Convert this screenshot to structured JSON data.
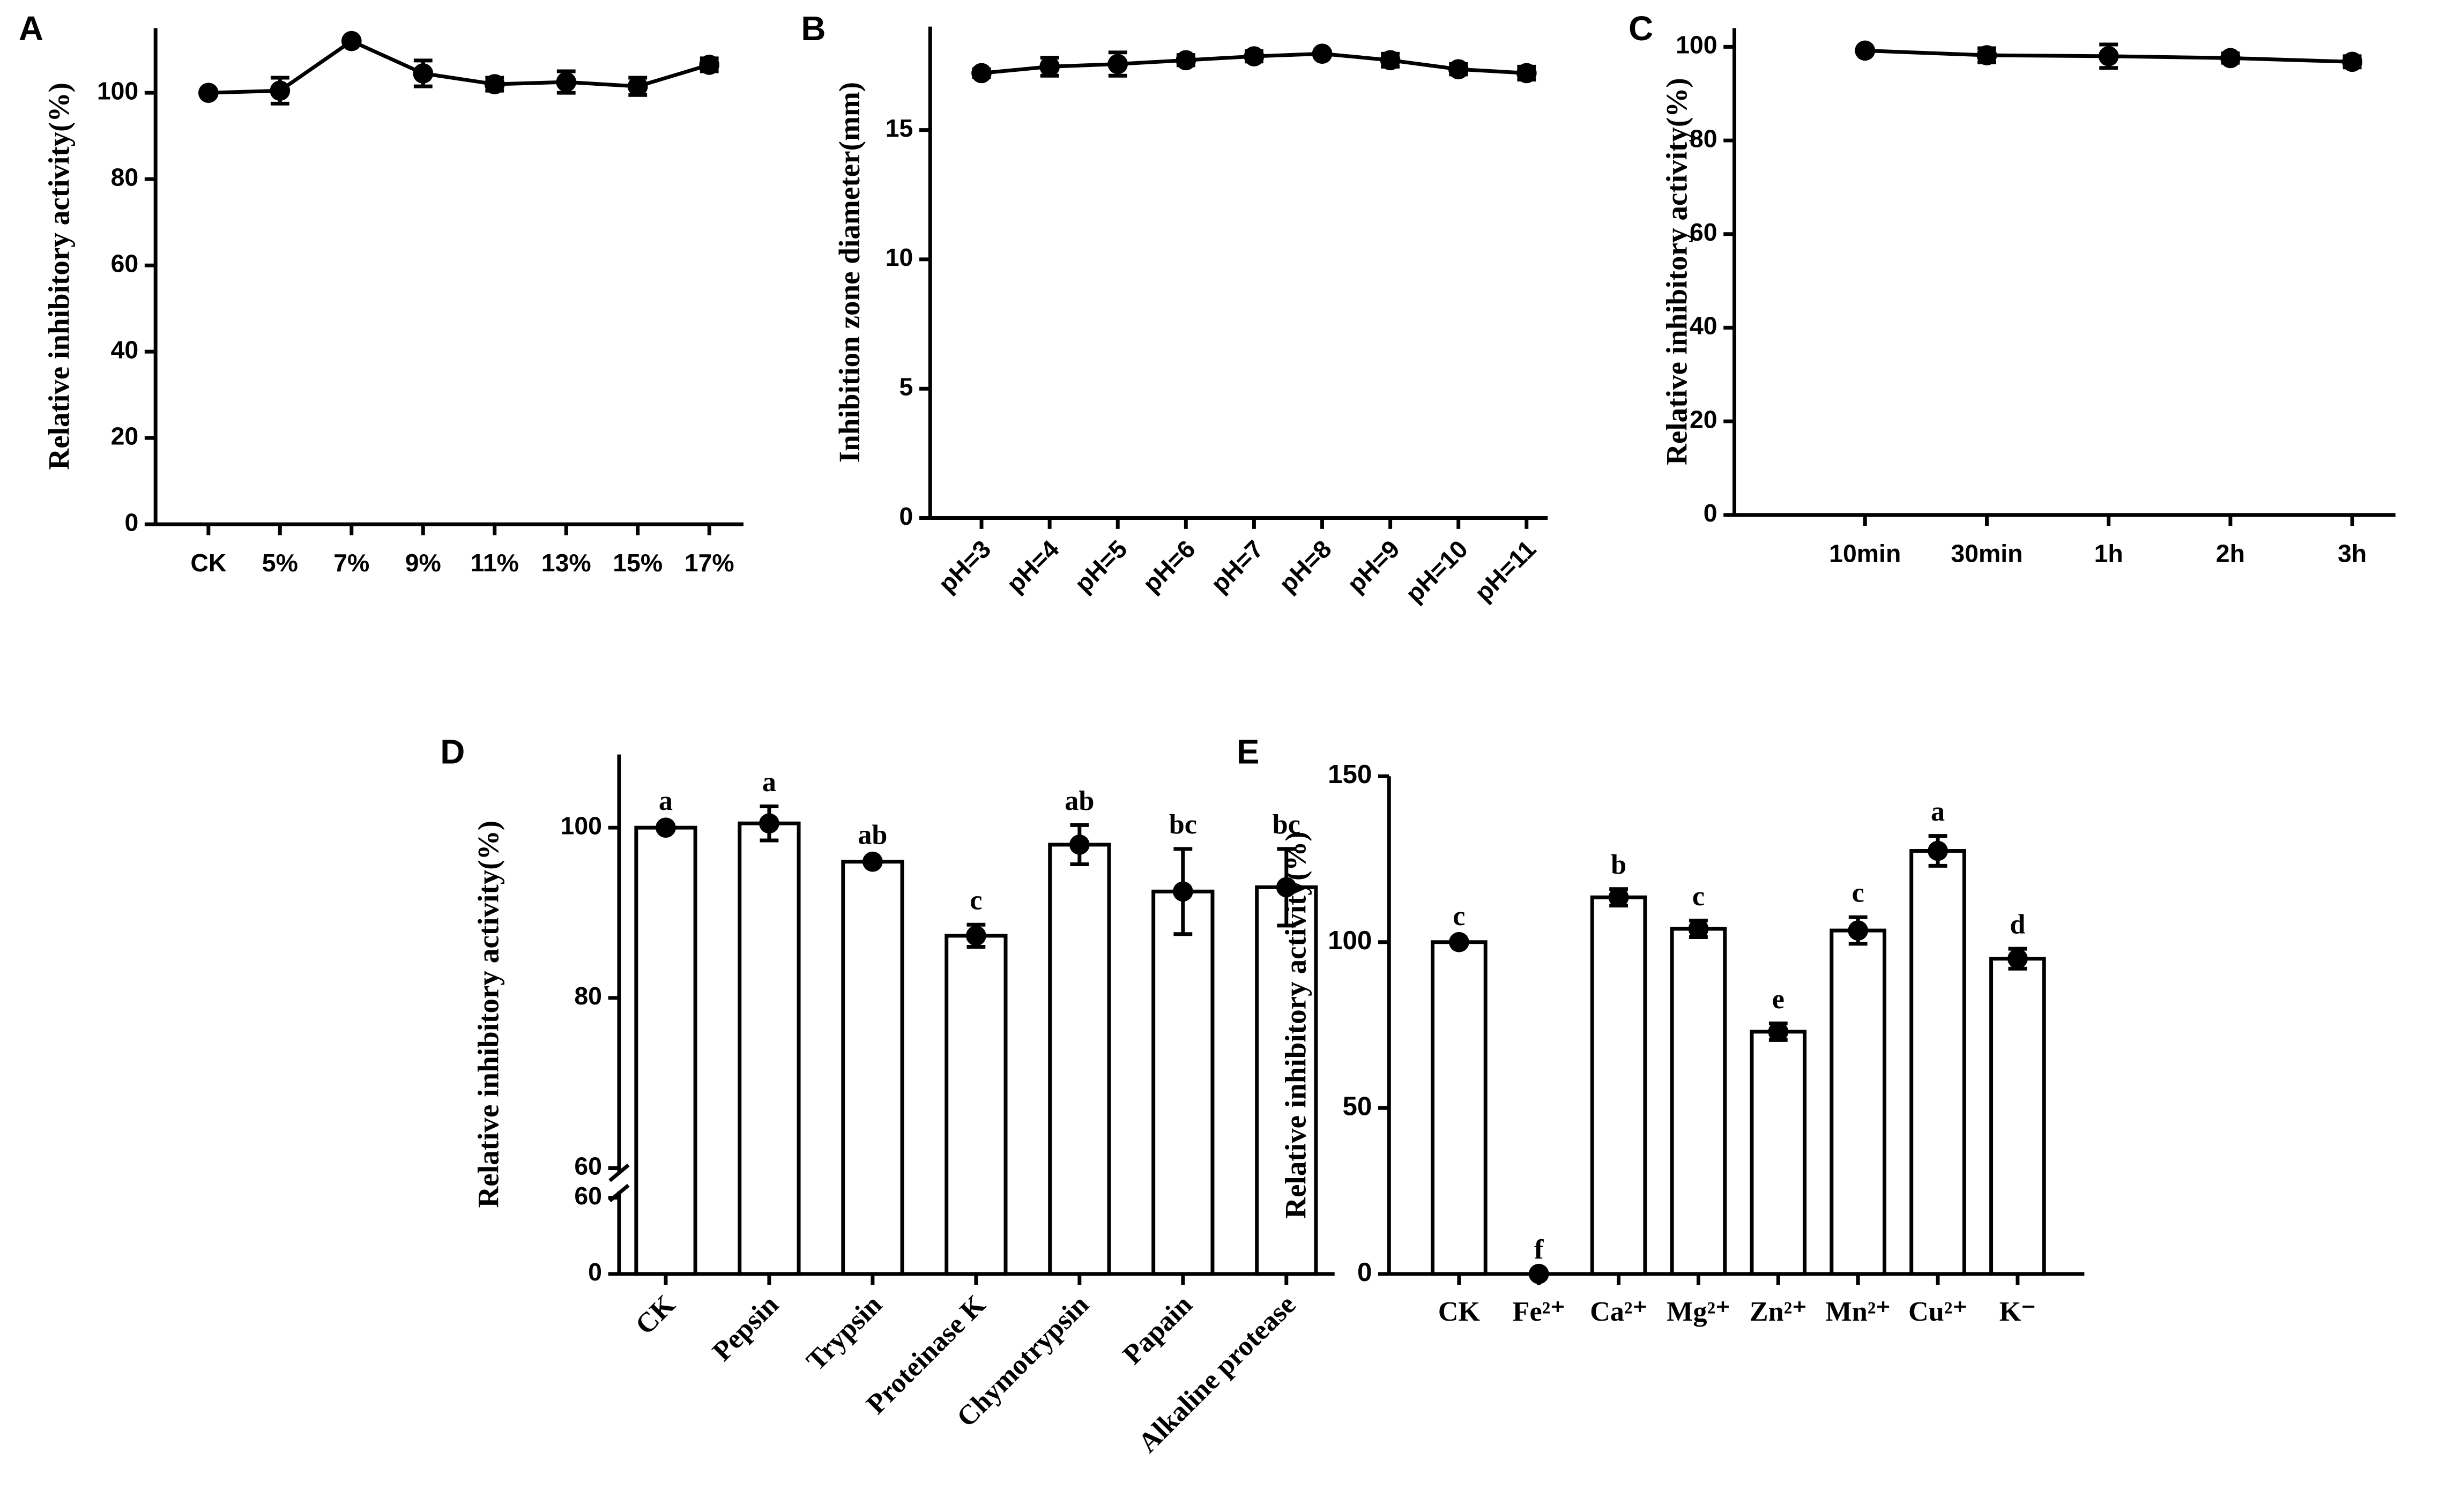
{
  "chart_data": [
    {
      "type": "line",
      "panel": "A",
      "ylabel": "Relative inhibitory activity(%)",
      "categories": [
        "CK",
        "5%",
        "7%",
        "9%",
        "11%",
        "13%",
        "15%",
        "17%"
      ],
      "values": [
        100,
        100.5,
        112,
        104.5,
        102,
        102.5,
        101.5,
        106.5
      ],
      "errors": [
        0,
        3,
        0.5,
        3,
        1.5,
        2.5,
        2,
        1.5
      ],
      "color": "#000000",
      "ylim": [
        0,
        115
      ],
      "yticks": [
        0,
        20,
        40,
        60,
        80,
        100
      ]
    },
    {
      "type": "line",
      "panel": "B",
      "ylabel": "Inhibition zone diameter(mm)",
      "categories": [
        "pH=3",
        "pH=4",
        "pH=5",
        "pH=6",
        "pH=7",
        "pH=8",
        "pH=9",
        "pH=10",
        "pH=11"
      ],
      "values": [
        17.2,
        17.45,
        17.55,
        17.7,
        17.85,
        17.95,
        17.7,
        17.35,
        17.2
      ],
      "errors": [
        0.15,
        0.35,
        0.45,
        0.2,
        0.2,
        0.1,
        0.25,
        0.2,
        0.25
      ],
      "color": "#000000",
      "ylim": [
        0,
        19
      ],
      "yticks": [
        0,
        5,
        10,
        15
      ]
    },
    {
      "type": "line",
      "panel": "C",
      "ylabel": "Relative inhibitory activity(%)",
      "categories": [
        "10min",
        "30min",
        "1h",
        "2h",
        "3h"
      ],
      "values": [
        99.2,
        98.2,
        98,
        97.6,
        96.8
      ],
      "errors": [
        0.5,
        1.5,
        2.5,
        1,
        1.2
      ],
      "color": "#000000",
      "ylim": [
        0,
        104
      ],
      "yticks": [
        0,
        20,
        40,
        60,
        80,
        100
      ]
    },
    {
      "type": "bar",
      "panel": "D",
      "ylabel": "Relative inhibitory activity(%)",
      "categories": [
        "CK",
        "Pepsin",
        "Trypsin",
        "Proteinase K",
        "Chymotrypsin",
        "Papain",
        "Alkaline protease"
      ],
      "values": [
        100,
        100.5,
        96,
        87.3,
        98,
        92.5,
        93
      ],
      "errors": [
        0.3,
        2,
        0.3,
        1.3,
        2.3,
        5,
        4.5
      ],
      "letters": [
        "a",
        "a",
        "ab",
        "c",
        "ab",
        "bc",
        "bc"
      ],
      "color": "#ffffff",
      "ylim": [
        0,
        60
      ],
      "yticks": [
        0,
        60
      ],
      "ylim_upper": [
        60,
        108.6
      ],
      "yticks_upper": [
        60,
        80,
        100
      ]
    },
    {
      "type": "bar",
      "panel": "E",
      "ylabel": "Relative inhibitory activity(%)",
      "categories": [
        "CK",
        "Fe²⁺",
        "Ca²⁺",
        "Mg²⁺",
        "Zn²⁺",
        "Mn²⁺",
        "Cu²⁺",
        "K⁻"
      ],
      "values": [
        100,
        0,
        113.5,
        104,
        73,
        103.5,
        127.5,
        95
      ],
      "errors": [
        0.5,
        0,
        2.5,
        2.5,
        2.5,
        4,
        4.5,
        3
      ],
      "letters": [
        "c",
        "f",
        "b",
        "c",
        "e",
        "c",
        "a",
        "d"
      ],
      "color": "#ffffff",
      "ylim": [
        0,
        150
      ],
      "yticks": [
        0,
        50,
        100,
        150
      ]
    }
  ]
}
